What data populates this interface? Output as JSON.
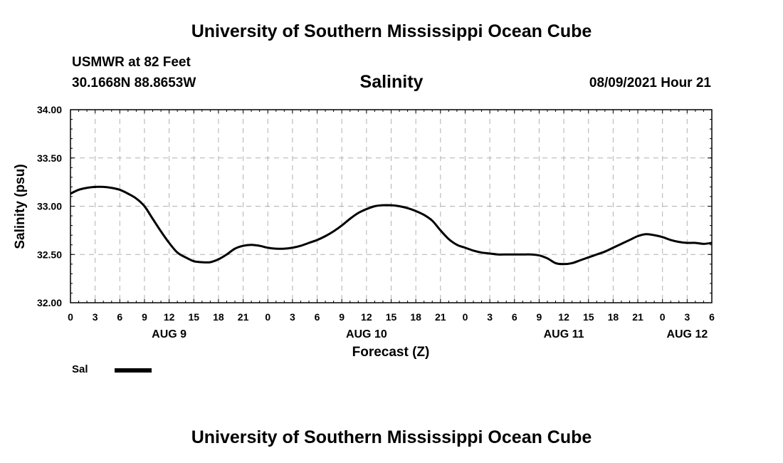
{
  "header": {
    "title": "University of Southern Mississippi Ocean Cube",
    "station": "USMWR at 82 Feet",
    "coords": "30.1668N  88.8653W",
    "parameter": "Salinity",
    "datetime": "08/09/2021 Hour 21"
  },
  "footer": {
    "title": "University of Southern Mississippi Ocean Cube"
  },
  "chart_data": {
    "type": "line",
    "title": "Salinity",
    "xlabel": "Forecast (Z)",
    "ylabel": "Salinity (psu)",
    "xlim": [
      0,
      78
    ],
    "ylim": [
      32.0,
      34.0
    ],
    "x_tick_labels": [
      "0",
      "3",
      "6",
      "9",
      "12",
      "15",
      "18",
      "21",
      "0",
      "3",
      "6",
      "9",
      "12",
      "15",
      "18",
      "21",
      "0",
      "3",
      "6",
      "9",
      "12",
      "15",
      "18",
      "21",
      "0",
      "3",
      "6"
    ],
    "y_tick_labels": [
      "32.00",
      "32.50",
      "33.00",
      "33.50",
      "34.00"
    ],
    "y_ticks": [
      32.0,
      32.5,
      33.0,
      33.5,
      34.0
    ],
    "day_labels": [
      {
        "label": "AUG 9",
        "hour": 12
      },
      {
        "label": "AUG 10",
        "hour": 36
      },
      {
        "label": "AUG 11",
        "hour": 60
      },
      {
        "label": "AUG 12",
        "hour": 75
      }
    ],
    "grid": true,
    "series": [
      {
        "name": "Sal",
        "color": "#000000",
        "x": [
          0,
          1,
          2,
          3,
          4,
          5,
          6,
          7,
          8,
          9,
          10,
          11,
          12,
          13,
          14,
          15,
          16,
          17,
          18,
          19,
          20,
          21,
          22,
          23,
          24,
          25,
          26,
          27,
          28,
          29,
          30,
          31,
          32,
          33,
          34,
          35,
          36,
          37,
          38,
          39,
          40,
          41,
          42,
          43,
          44,
          45,
          46,
          47,
          48,
          49,
          50,
          51,
          52,
          53,
          54,
          55,
          56,
          57,
          58,
          59,
          60,
          61,
          62,
          63,
          64,
          65,
          66,
          67,
          68,
          69,
          70,
          71,
          72,
          73,
          74,
          75,
          76,
          77,
          78
        ],
        "values": [
          33.13,
          33.17,
          33.19,
          33.2,
          33.2,
          33.19,
          33.17,
          33.13,
          33.08,
          33.0,
          32.87,
          32.74,
          32.62,
          32.52,
          32.47,
          32.43,
          32.42,
          32.42,
          32.45,
          32.5,
          32.56,
          32.59,
          32.6,
          32.59,
          32.57,
          32.56,
          32.56,
          32.57,
          32.59,
          32.62,
          32.65,
          32.69,
          32.74,
          32.8,
          32.87,
          32.93,
          32.97,
          33.0,
          33.01,
          33.01,
          33.0,
          32.98,
          32.95,
          32.91,
          32.85,
          32.75,
          32.66,
          32.6,
          32.57,
          32.54,
          32.52,
          32.51,
          32.5,
          32.5,
          32.5,
          32.5,
          32.5,
          32.49,
          32.46,
          32.41,
          32.4,
          32.41,
          32.44,
          32.47,
          32.5,
          32.53,
          32.57,
          32.61,
          32.65,
          32.69,
          32.71,
          32.7,
          32.68,
          32.65,
          32.63,
          32.62,
          32.62,
          32.61,
          32.62
        ]
      }
    ],
    "legend": {
      "label": "Sal",
      "placement": "bottom-left"
    }
  }
}
